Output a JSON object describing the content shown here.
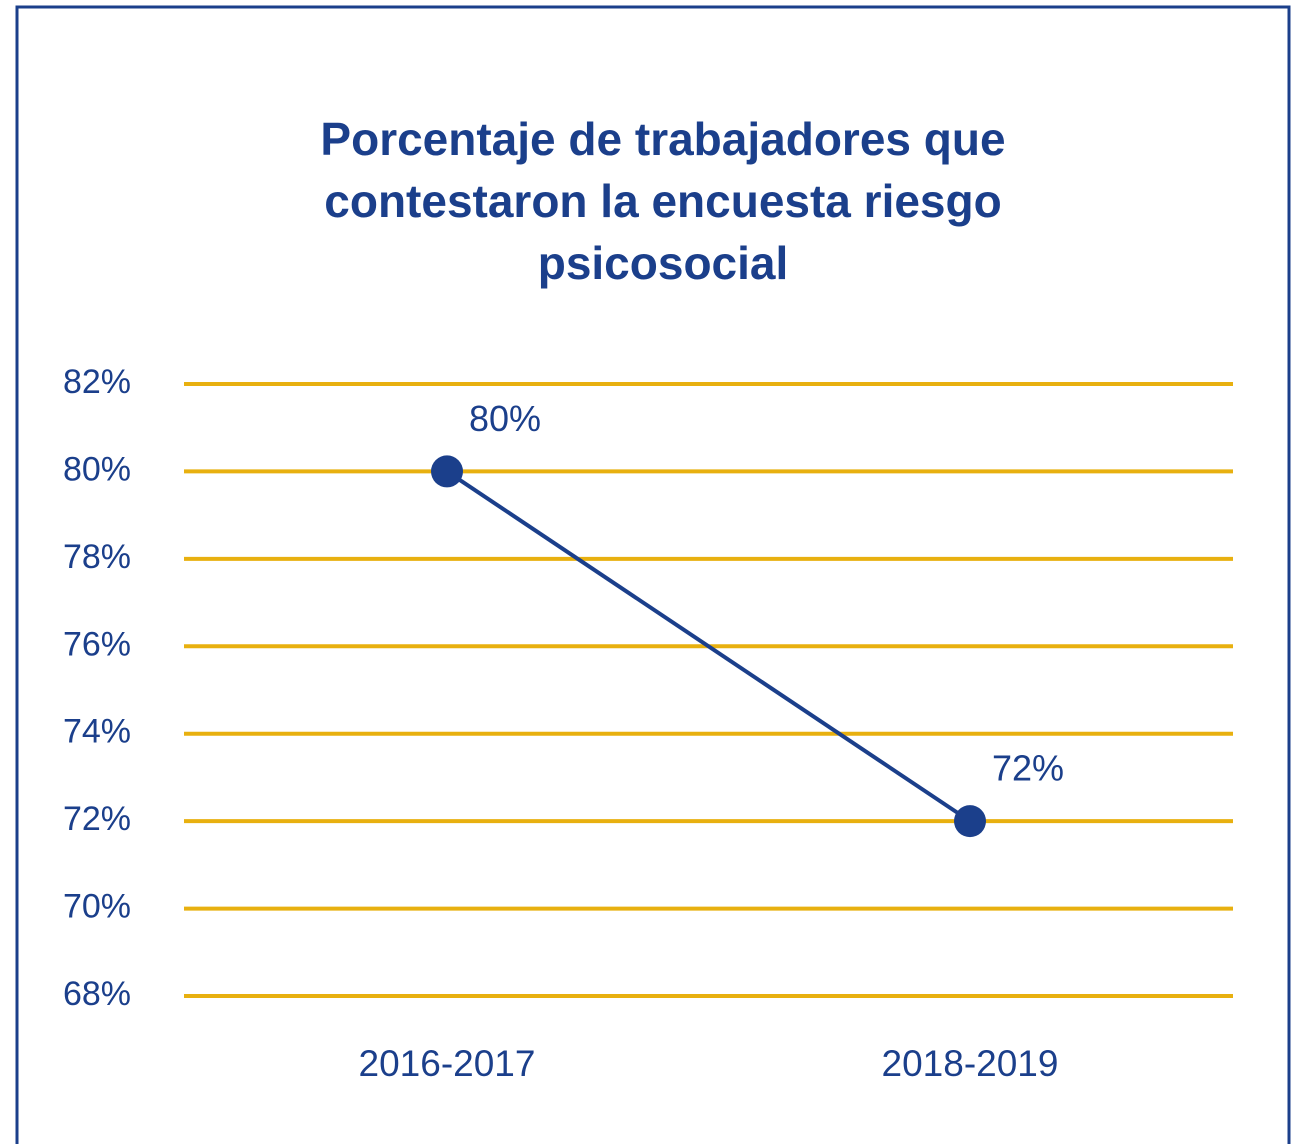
{
  "chart_data": {
    "type": "line",
    "title": "Porcentaje de trabajadores que contestaron la encuesta riesgo psicosocial",
    "categories": [
      "2016-2017",
      "2018-2019"
    ],
    "series": [
      {
        "name": "Porcentaje",
        "color": "#1b3f8b",
        "values": [
          80,
          72
        ],
        "value_labels": [
          "80%",
          "72%"
        ]
      }
    ],
    "ylim": [
      68,
      82
    ],
    "yticks": [
      {
        "value": 68,
        "label": "68%"
      },
      {
        "value": 70,
        "label": "70%"
      },
      {
        "value": 72,
        "label": "72%"
      },
      {
        "value": 74,
        "label": "74%"
      },
      {
        "value": 76,
        "label": "76%"
      },
      {
        "value": 78,
        "label": "78%"
      },
      {
        "value": 80,
        "label": "80%"
      },
      {
        "value": 82,
        "label": "82%"
      }
    ],
    "grid": true,
    "grid_color": "#e8b00f"
  }
}
